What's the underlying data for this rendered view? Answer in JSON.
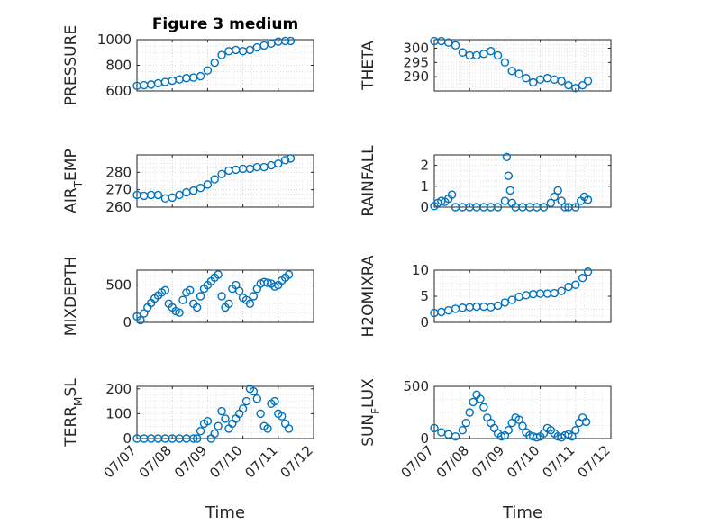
{
  "title": "Figure 3 medium",
  "xlabel": "Time",
  "x_ticks": [
    "07/07",
    "07/08",
    "07/09",
    "07/10",
    "07/11",
    "07/12"
  ],
  "marker_color": "#0072BD",
  "chart_data": [
    {
      "type": "scatter",
      "name": "PRESSURE",
      "ylabel": "PRESSURE",
      "ylim": [
        600,
        1000
      ],
      "yticks": [
        600,
        800,
        1000
      ],
      "grid": true,
      "x": [
        7.0,
        7.2,
        7.4,
        7.6,
        7.8,
        8.0,
        8.2,
        8.4,
        8.6,
        8.8,
        9.0,
        9.2,
        9.4,
        9.6,
        9.8,
        10.0,
        10.2,
        10.4,
        10.6,
        10.8,
        11.0,
        11.2,
        11.35
      ],
      "y": [
        640,
        645,
        650,
        660,
        670,
        680,
        690,
        700,
        705,
        715,
        760,
        820,
        880,
        910,
        920,
        910,
        920,
        940,
        955,
        970,
        985,
        990,
        990
      ]
    },
    {
      "type": "scatter",
      "name": "THETA",
      "ylabel": "THETA",
      "ylim": [
        285,
        303
      ],
      "yticks": [
        290,
        295,
        300
      ],
      "grid": true,
      "x": [
        7.0,
        7.2,
        7.4,
        7.6,
        7.8,
        8.0,
        8.2,
        8.4,
        8.6,
        8.8,
        9.0,
        9.2,
        9.4,
        9.6,
        9.8,
        10.0,
        10.2,
        10.4,
        10.6,
        10.8,
        11.0,
        11.2,
        11.35
      ],
      "y": [
        302.5,
        302.5,
        302,
        301,
        298.5,
        297.5,
        297.5,
        298,
        299,
        297.5,
        295,
        292,
        291,
        289.5,
        288,
        289,
        289.5,
        289,
        288.5,
        287,
        286,
        287,
        288.5
      ]
    },
    {
      "type": "scatter",
      "name": "AIR_TEMP",
      "ylabel": "AIR_TEMP",
      "ylim": [
        260,
        290
      ],
      "yticks": [
        260,
        270,
        280
      ],
      "grid": true,
      "x": [
        7.0,
        7.2,
        7.4,
        7.6,
        7.8,
        8.0,
        8.2,
        8.4,
        8.6,
        8.8,
        9.0,
        9.2,
        9.4,
        9.6,
        9.8,
        10.0,
        10.2,
        10.4,
        10.6,
        10.8,
        11.0,
        11.2,
        11.35
      ],
      "y": [
        267,
        266.5,
        267,
        267,
        265,
        265.5,
        267,
        268.5,
        269.5,
        271,
        273,
        276,
        279,
        281,
        281.5,
        282,
        282,
        283,
        283,
        284,
        285,
        287,
        288
      ]
    },
    {
      "type": "scatter",
      "name": "RAINFALL",
      "ylabel": "RAINFALL",
      "ylim": [
        0,
        2.5
      ],
      "yticks": [
        0,
        1,
        2
      ],
      "grid": true,
      "x": [
        7.0,
        7.1,
        7.2,
        7.3,
        7.4,
        7.5,
        7.6,
        7.8,
        8.0,
        8.2,
        8.4,
        8.6,
        8.8,
        9.0,
        9.05,
        9.1,
        9.15,
        9.2,
        9.3,
        9.5,
        9.7,
        9.9,
        10.1,
        10.3,
        10.4,
        10.5,
        10.6,
        10.7,
        10.8,
        11.0,
        11.15,
        11.25,
        11.35
      ],
      "y": [
        0.05,
        0.2,
        0.3,
        0.25,
        0.4,
        0.6,
        0,
        0,
        0,
        0,
        0,
        0,
        0,
        0.3,
        2.4,
        1.5,
        0.8,
        0.2,
        0,
        0,
        0,
        0,
        0,
        0.2,
        0.5,
        0.8,
        0.3,
        0,
        0,
        0,
        0.3,
        0.5,
        0.35
      ]
    },
    {
      "type": "scatter",
      "name": "MIXDEPTH",
      "ylabel": "MIXDEPTH",
      "ylim": [
        0,
        700
      ],
      "yticks": [
        0,
        500
      ],
      "grid": true,
      "x": [
        7.0,
        7.1,
        7.2,
        7.3,
        7.4,
        7.5,
        7.6,
        7.7,
        7.8,
        7.9,
        8.0,
        8.1,
        8.2,
        8.3,
        8.4,
        8.5,
        8.6,
        8.7,
        8.8,
        8.9,
        9.0,
        9.1,
        9.2,
        9.3,
        9.4,
        9.5,
        9.6,
        9.7,
        9.8,
        9.9,
        10.0,
        10.1,
        10.2,
        10.3,
        10.4,
        10.5,
        10.6,
        10.7,
        10.8,
        10.9,
        11.0,
        11.1,
        11.2,
        11.3
      ],
      "y": [
        80,
        30,
        120,
        200,
        260,
        320,
        360,
        400,
        430,
        250,
        200,
        150,
        130,
        300,
        400,
        430,
        250,
        200,
        350,
        450,
        500,
        550,
        600,
        640,
        350,
        200,
        250,
        450,
        500,
        420,
        330,
        300,
        250,
        350,
        450,
        520,
        540,
        530,
        520,
        480,
        500,
        560,
        600,
        640
      ]
    },
    {
      "type": "scatter",
      "name": "H2OMIXRA",
      "ylabel": "H2OMIXRA",
      "ylim": [
        0,
        10
      ],
      "yticks": [
        0,
        5,
        10
      ],
      "grid": true,
      "x": [
        7.0,
        7.2,
        7.4,
        7.6,
        7.8,
        8.0,
        8.2,
        8.4,
        8.6,
        8.8,
        9.0,
        9.2,
        9.4,
        9.6,
        9.8,
        10.0,
        10.2,
        10.4,
        10.6,
        10.8,
        11.0,
        11.2,
        11.35
      ],
      "y": [
        1.8,
        2.0,
        2.3,
        2.6,
        2.8,
        2.9,
        3.0,
        3.0,
        2.9,
        3.2,
        3.8,
        4.3,
        4.9,
        5.2,
        5.4,
        5.5,
        5.5,
        5.6,
        6.0,
        6.8,
        7.2,
        8.5,
        9.7
      ]
    },
    {
      "type": "scatter",
      "name": "TERR_MSL",
      "ylabel": "TERR_MSL",
      "ylim": [
        0,
        210
      ],
      "yticks": [
        0,
        100,
        200
      ],
      "grid": true,
      "x": [
        7.0,
        7.2,
        7.4,
        7.6,
        7.8,
        8.0,
        8.2,
        8.4,
        8.6,
        8.7,
        8.8,
        8.9,
        9.0,
        9.1,
        9.2,
        9.3,
        9.4,
        9.5,
        9.6,
        9.7,
        9.8,
        9.9,
        10.0,
        10.1,
        10.2,
        10.3,
        10.4,
        10.5,
        10.6,
        10.7,
        10.8,
        10.9,
        11.0,
        11.1,
        11.2,
        11.3
      ],
      "y": [
        0,
        0,
        0,
        0,
        0,
        0,
        0,
        0,
        0,
        0,
        30,
        60,
        70,
        0,
        20,
        50,
        110,
        80,
        40,
        60,
        80,
        100,
        120,
        150,
        200,
        190,
        160,
        100,
        50,
        40,
        140,
        150,
        100,
        90,
        60,
        40
      ]
    },
    {
      "type": "scatter",
      "name": "SUN_FLUX",
      "ylabel": "SUN_FLUX",
      "ylim": [
        0,
        500
      ],
      "yticks": [
        0,
        500
      ],
      "grid": true,
      "x": [
        7.0,
        7.2,
        7.4,
        7.6,
        7.8,
        7.9,
        8.0,
        8.1,
        8.2,
        8.3,
        8.4,
        8.5,
        8.6,
        8.7,
        8.8,
        8.9,
        9.0,
        9.1,
        9.2,
        9.3,
        9.4,
        9.5,
        9.6,
        9.7,
        9.8,
        9.9,
        10.0,
        10.1,
        10.2,
        10.3,
        10.4,
        10.5,
        10.6,
        10.7,
        10.8,
        10.9,
        11.0,
        11.1,
        11.2,
        11.3
      ],
      "y": [
        100,
        60,
        40,
        20,
        80,
        150,
        250,
        350,
        420,
        380,
        300,
        200,
        150,
        100,
        50,
        20,
        30,
        80,
        150,
        200,
        180,
        120,
        60,
        30,
        20,
        10,
        20,
        50,
        100,
        80,
        50,
        20,
        10,
        30,
        40,
        20,
        80,
        150,
        200,
        160
      ]
    }
  ]
}
